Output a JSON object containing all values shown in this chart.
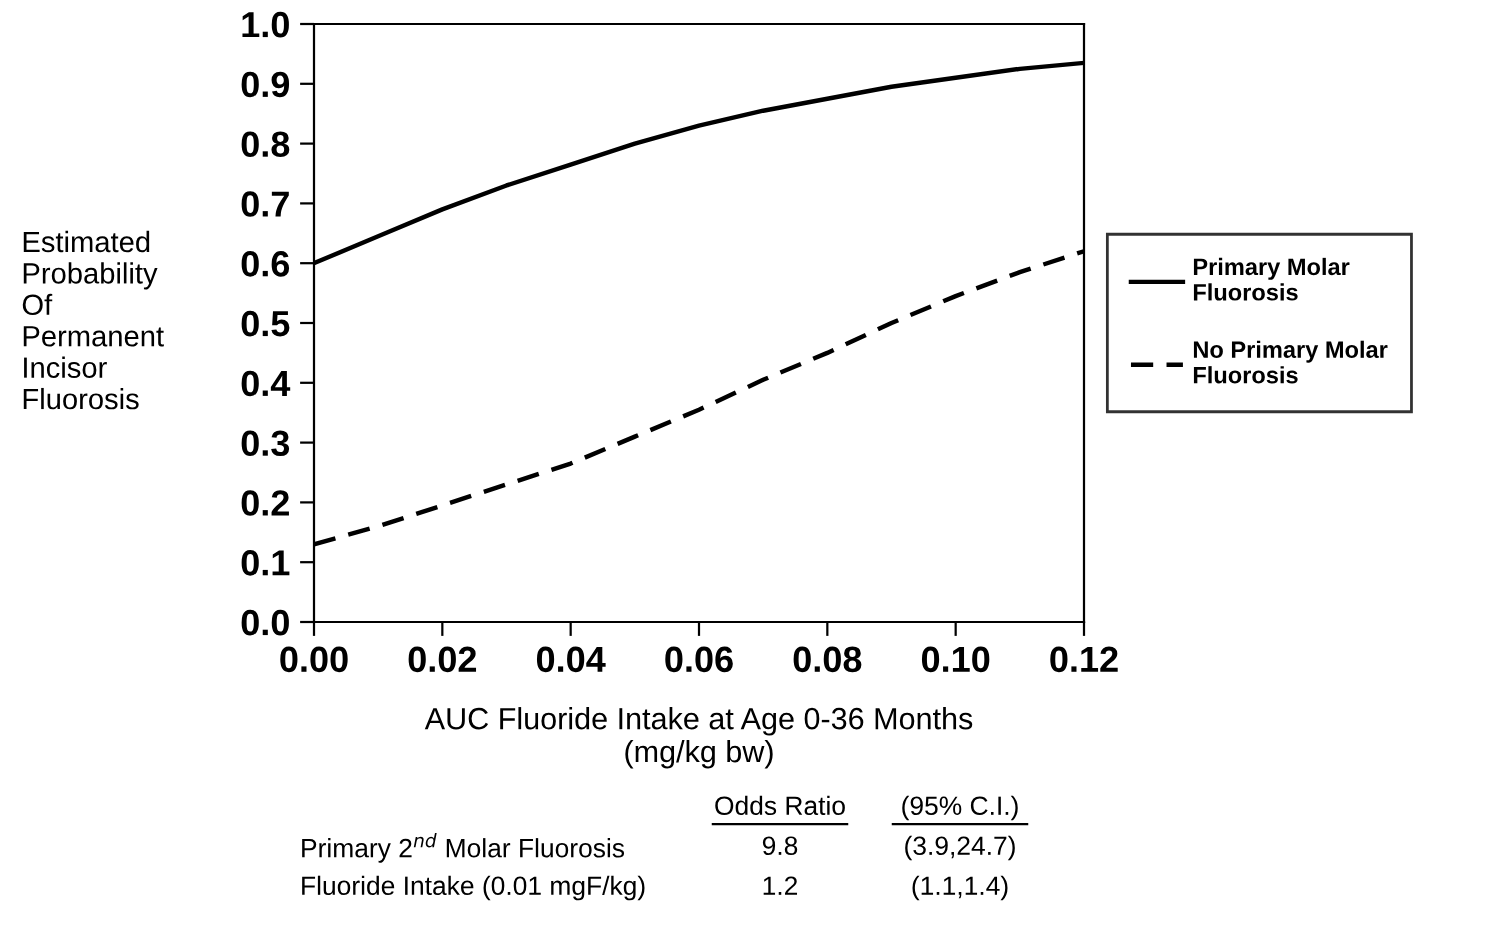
{
  "chart_data": {
    "type": "line",
    "x": [
      0,
      0.01,
      0.02,
      0.03,
      0.04,
      0.05,
      0.06,
      0.07,
      0.08,
      0.09,
      0.1,
      0.11,
      0.12
    ],
    "series": [
      {
        "name": "Primary Molar Fluorosis",
        "color": "#000000",
        "line_style": "solid",
        "values": [
          0.6,
          0.645,
          0.69,
          0.73,
          0.765,
          0.8,
          0.83,
          0.855,
          0.875,
          0.895,
          0.91,
          0.925,
          0.935
        ]
      },
      {
        "name": "No Primary Molar Fluorosis",
        "color": "#000000",
        "line_style": "dashed",
        "values": [
          0.13,
          0.16,
          0.195,
          0.23,
          0.265,
          0.31,
          0.355,
          0.405,
          0.45,
          0.5,
          0.545,
          0.585,
          0.62
        ]
      }
    ],
    "xlabel": "AUC Fluoride Intake at Age 0-36 Months\n(mg/kg bw)",
    "ylabel": "Estimated\nProbability\nOf\nPermanent\nIncisor\nFluorosis",
    "xlim": [
      0,
      0.12
    ],
    "xticks": [
      {
        "value": 0,
        "label": "0.00"
      },
      {
        "value": 0.02,
        "label": "0.02"
      },
      {
        "value": 0.04,
        "label": "0.04"
      },
      {
        "value": 0.06,
        "label": "0.06"
      },
      {
        "value": 0.08,
        "label": "0.08"
      },
      {
        "value": 0.1,
        "label": "0.10"
      },
      {
        "value": 0.12,
        "label": "0.12"
      }
    ],
    "ylim": [
      0,
      1
    ],
    "yticks": [
      {
        "value": 0,
        "label": "0.0"
      },
      {
        "value": 0.1,
        "label": "0.1"
      },
      {
        "value": 0.2,
        "label": "0.2"
      },
      {
        "value": 0.3,
        "label": "0.3"
      },
      {
        "value": 0.4,
        "label": "0.4"
      },
      {
        "value": 0.5,
        "label": "0.5"
      },
      {
        "value": 0.6,
        "label": "0.6"
      },
      {
        "value": 0.7,
        "label": "0.7"
      },
      {
        "value": 0.8,
        "label": "0.8"
      },
      {
        "value": 0.9,
        "label": "0.9"
      },
      {
        "value": 1,
        "label": "1.0"
      }
    ],
    "annotations": [
      "Odds Ratio",
      "(95% C.I.)",
      "Primary 2$^{nd}$ Molar Fluorosis",
      "9.8",
      "(3.9,24.7)",
      "Fluoride Intake (0.01 mgF/kg)",
      "1.2",
      "(1.1,1.4)"
    ],
    "legend": "right",
    "grid": false,
    "marker": "none"
  }
}
